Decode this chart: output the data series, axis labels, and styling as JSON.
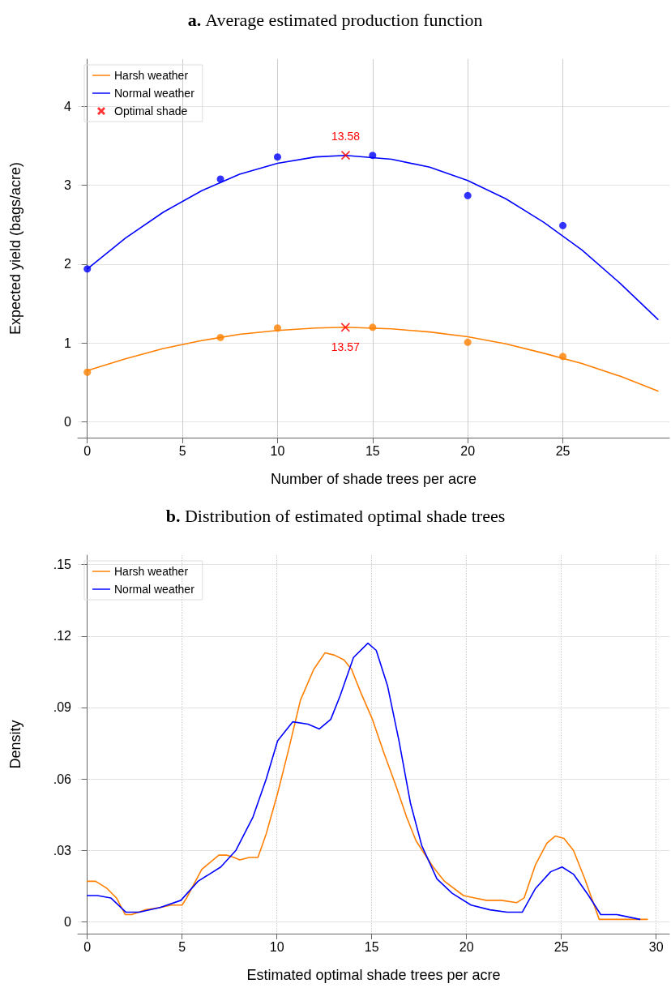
{
  "chart_data": [
    {
      "type": "line",
      "title": "a. Average estimated production function",
      "xlabel": "Number of shade trees per acre",
      "ylabel": "Expected yield (bags/acre)",
      "xlim": [
        -0.5,
        30.6
      ],
      "ylim": [
        -0.2,
        4.6
      ],
      "xticks": [
        0,
        5,
        10,
        15,
        20,
        25
      ],
      "yticks": [
        0,
        1,
        2,
        3,
        4
      ],
      "grid": true,
      "legend": "top left",
      "annotations": [
        {
          "text": "13.58",
          "x": 13.58,
          "y": 3.38
        },
        {
          "text": "13.57",
          "x": 13.57,
          "y": 1.2
        }
      ],
      "series": [
        {
          "name": "Harsh weather",
          "marker": "none",
          "color": "#ff7f00",
          "x": [
            0,
            2,
            4,
            6,
            8,
            10,
            12,
            13.57,
            16,
            18,
            20,
            22,
            24,
            26,
            28,
            30
          ],
          "values": [
            0.65,
            0.8,
            0.93,
            1.03,
            1.11,
            1.16,
            1.19,
            1.2,
            1.18,
            1.14,
            1.08,
            0.99,
            0.87,
            0.74,
            0.58,
            0.39
          ]
        },
        {
          "name": "Normal weather",
          "marker": "none",
          "color": "#0000ff",
          "x": [
            0,
            2,
            4,
            6,
            8,
            10,
            12,
            13.58,
            16,
            18,
            20,
            22,
            24,
            26,
            28,
            30
          ],
          "values": [
            1.94,
            2.33,
            2.66,
            2.93,
            3.14,
            3.28,
            3.36,
            3.38,
            3.33,
            3.23,
            3.06,
            2.83,
            2.53,
            2.18,
            1.76,
            1.3
          ]
        },
        {
          "type": "scatter",
          "marker": "circle",
          "color": "#ff7f00",
          "x": [
            0,
            7,
            10,
            15,
            20,
            25
          ],
          "values": [
            0.63,
            1.07,
            1.19,
            1.2,
            1.01,
            0.83
          ]
        },
        {
          "type": "scatter",
          "marker": "circle",
          "color": "#0000ff",
          "x": [
            0,
            7,
            10,
            15,
            20,
            25
          ],
          "values": [
            1.94,
            3.08,
            3.36,
            3.38,
            2.87,
            2.49
          ]
        },
        {
          "name": "Optimal shade",
          "type": "scatter",
          "marker": "cross",
          "color": "#ff0000",
          "x": [
            13.58,
            13.57
          ],
          "values": [
            3.38,
            1.2
          ]
        }
      ]
    },
    {
      "type": "line",
      "title": "b. Distribution of estimated optimal shade trees",
      "xlabel": "Estimated optimal shade trees per acre",
      "ylabel": "Density",
      "xlim": [
        -0.5,
        30.7
      ],
      "ylim": [
        -0.005,
        0.154
      ],
      "xticks": [
        0,
        5,
        10,
        15,
        20,
        25,
        30
      ],
      "yticks": [
        0,
        {
          "value": 0.03,
          "label": ".03"
        },
        {
          "value": 0.06,
          "label": ".06"
        },
        {
          "value": 0.09,
          "label": ".09"
        },
        {
          "value": 0.12,
          "label": ".12"
        },
        {
          "value": 0.15,
          "label": ".15"
        }
      ],
      "grid": true,
      "legend": "top left",
      "series": [
        {
          "name": "Harsh weather",
          "marker": "none",
          "color": "#ff7f00",
          "x": [
            0,
            0.44,
            1.04,
            1.54,
            2.0,
            2.34,
            3.04,
            3.84,
            4.44,
            5.0,
            5.24,
            6.04,
            6.94,
            7.34,
            7.74,
            8.04,
            8.54,
            9.0,
            9.44,
            10.04,
            10.64,
            11.24,
            11.94,
            12.54,
            13.04,
            13.54,
            13.94,
            14.44,
            15.04,
            15.64,
            16.24,
            16.84,
            17.34,
            18.24,
            18.84,
            19.84,
            20.44,
            21.04,
            21.84,
            22.64,
            23.04,
            23.64,
            24.24,
            24.68,
            25.14,
            25.64,
            26.24,
            27.0,
            28.24,
            29.54
          ],
          "values": [
            0.017,
            0.017,
            0.014,
            0.01,
            0.003,
            0.003,
            0.005,
            0.006,
            0.007,
            0.007,
            0.01,
            0.022,
            0.028,
            0.028,
            0.027,
            0.026,
            0.027,
            0.027,
            0.037,
            0.054,
            0.073,
            0.093,
            0.106,
            0.113,
            0.112,
            0.11,
            0.106,
            0.096,
            0.085,
            0.071,
            0.058,
            0.044,
            0.034,
            0.023,
            0.017,
            0.011,
            0.01,
            0.009,
            0.009,
            0.008,
            0.01,
            0.024,
            0.033,
            0.036,
            0.035,
            0.03,
            0.018,
            0.001,
            0.001,
            0.001
          ]
        },
        {
          "name": "Normal weather",
          "marker": "none",
          "color": "#0000ff",
          "x": [
            0,
            0.54,
            1.24,
            2.04,
            2.74,
            3.84,
            4.94,
            5.84,
            7.04,
            7.84,
            8.74,
            9.44,
            10.04,
            10.84,
            11.64,
            12.24,
            12.84,
            13.34,
            14.04,
            14.8,
            15.24,
            15.84,
            16.44,
            17.04,
            17.64,
            18.44,
            19.24,
            20.24,
            21.24,
            22.14,
            22.94,
            23.64,
            24.44,
            25.04,
            25.64,
            26.44,
            27.08,
            27.94,
            29.14
          ],
          "values": [
            0.011,
            0.011,
            0.01,
            0.004,
            0.004,
            0.006,
            0.009,
            0.017,
            0.023,
            0.03,
            0.044,
            0.06,
            0.076,
            0.084,
            0.083,
            0.081,
            0.085,
            0.095,
            0.111,
            0.117,
            0.114,
            0.099,
            0.076,
            0.05,
            0.032,
            0.018,
            0.012,
            0.007,
            0.005,
            0.004,
            0.004,
            0.014,
            0.021,
            0.023,
            0.02,
            0.011,
            0.003,
            0.003,
            0.001
          ]
        }
      ]
    }
  ]
}
